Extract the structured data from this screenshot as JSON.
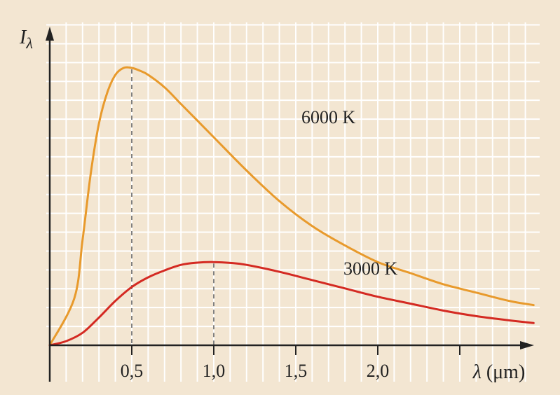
{
  "chart_data": {
    "type": "line",
    "x_unit": "µm",
    "xlim": [
      0,
      2.95
    ],
    "ylim": [
      0,
      1.05
    ],
    "grid": true,
    "xlabel": {
      "symbol": "λ",
      "unit": "(μm)"
    },
    "ylabel": {
      "symbol": "I",
      "subscript": "λ"
    },
    "x_tick_labels": [
      {
        "value": 0.5,
        "label": "0,5"
      },
      {
        "value": 1.0,
        "label": "1,0"
      },
      {
        "value": 1.5,
        "label": "1,5"
      },
      {
        "value": 2.0,
        "label": "2,0"
      },
      {
        "value": 2.5,
        "label": ""
      }
    ],
    "series": [
      {
        "name": "6000 K",
        "color": "#e89a2c",
        "peak_x": 0.5,
        "x": [
          0,
          0.15,
          0.2,
          0.25,
          0.3,
          0.35,
          0.4,
          0.45,
          0.5,
          0.55,
          0.6,
          0.7,
          0.8,
          0.9,
          1.0,
          1.2,
          1.4,
          1.6,
          1.8,
          2.0,
          2.2,
          2.4,
          2.6,
          2.8,
          2.95
        ],
        "y": [
          0,
          0.17,
          0.38,
          0.62,
          0.8,
          0.91,
          0.975,
          1.0,
          1.0,
          0.99,
          0.975,
          0.93,
          0.87,
          0.81,
          0.75,
          0.63,
          0.52,
          0.43,
          0.36,
          0.3,
          0.26,
          0.22,
          0.19,
          0.16,
          0.145
        ]
      },
      {
        "name": "3000 K",
        "color": "#d42a22",
        "peak_x": 1.0,
        "x": [
          0,
          0.1,
          0.2,
          0.3,
          0.4,
          0.5,
          0.6,
          0.7,
          0.8,
          0.9,
          1.0,
          1.1,
          1.2,
          1.4,
          1.6,
          1.8,
          2.0,
          2.2,
          2.4,
          2.6,
          2.8,
          2.95
        ],
        "y": [
          0,
          0.015,
          0.045,
          0.1,
          0.16,
          0.21,
          0.245,
          0.27,
          0.29,
          0.298,
          0.3,
          0.297,
          0.29,
          0.265,
          0.235,
          0.205,
          0.175,
          0.15,
          0.125,
          0.105,
          0.09,
          0.08
        ]
      }
    ]
  }
}
